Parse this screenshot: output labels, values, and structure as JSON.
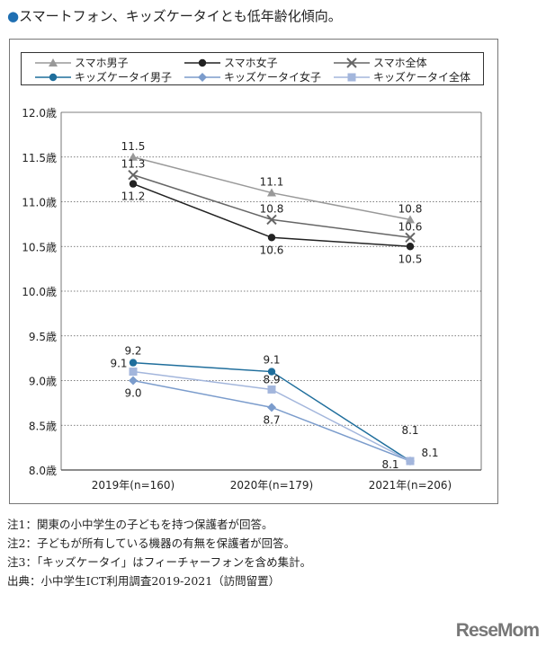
{
  "title": "スマートフォン、キッズケータイとも低年齢化傾向。",
  "chart_data": {
    "type": "line",
    "categories": [
      "2019年(n=160)",
      "2020年(n=179)",
      "2021年(n=206)"
    ],
    "ylim": [
      8.0,
      12.0
    ],
    "yticks": [
      "8.0歳",
      "8.5歳",
      "9.0歳",
      "9.5歳",
      "10.0歳",
      "10.5歳",
      "11.0歳",
      "11.5歳",
      "12.0歳"
    ],
    "grid": true,
    "legend": "top",
    "series": [
      {
        "name": "スマホ男子",
        "values": [
          11.5,
          11.1,
          10.8
        ],
        "color": "#999999",
        "marker": "triangle"
      },
      {
        "name": "スマホ女子",
        "values": [
          11.2,
          10.6,
          10.5
        ],
        "color": "#222222",
        "marker": "circle"
      },
      {
        "name": "スマホ全体",
        "values": [
          11.3,
          10.8,
          10.6
        ],
        "color": "#666666",
        "marker": "x"
      },
      {
        "name": "キッズケータイ男子",
        "values": [
          9.2,
          9.1,
          8.1
        ],
        "color": "#1f6e9c",
        "marker": "circle"
      },
      {
        "name": "キッズケータイ女子",
        "values": [
          9.0,
          8.7,
          8.1
        ],
        "color": "#7b9ccc",
        "marker": "diamond"
      },
      {
        "name": "キッズケータイ全体",
        "values": [
          9.1,
          8.9,
          8.1
        ],
        "color": "#a3b6dc",
        "marker": "square"
      }
    ]
  },
  "notes": [
    "注1：関東の小中学生の子どもを持つ保護者が回答。",
    "注2：子どもが所有している機器の有無を保護者が回答。",
    "注3：「キッズケータイ」はフィーチャーフォンを含め集計。",
    "出典：小中学生ICT利用調査2019-2021（訪問留置）"
  ],
  "logo": "ReseMom"
}
